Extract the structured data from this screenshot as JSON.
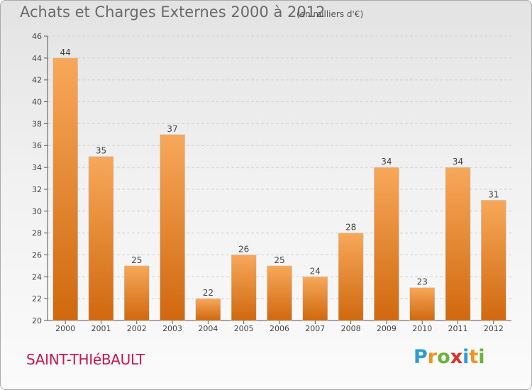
{
  "header": {
    "title": "Achats et Charges Externes 2000 à 2012",
    "subtitle": "(en milliers d'€)"
  },
  "footer": {
    "city": "SAINT-THIéBAULT"
  },
  "brand": {
    "logo_letters": [
      "P",
      "r",
      "o",
      "x",
      "i",
      "t",
      "i"
    ],
    "logo_colors": [
      "#2e9bd6",
      "#f29222",
      "#6bb33a",
      "#d9302c",
      "#2e9bd6",
      "#f29222",
      "#6bb33a"
    ]
  },
  "chart_data": {
    "type": "bar",
    "categories": [
      "2000",
      "2001",
      "2002",
      "2003",
      "2004",
      "2005",
      "2006",
      "2007",
      "2008",
      "2009",
      "2010",
      "2011",
      "2012"
    ],
    "values": [
      44,
      35,
      25,
      37,
      22,
      26,
      25,
      24,
      28,
      34,
      23,
      34,
      31
    ],
    "ylim": [
      20,
      46
    ],
    "yticks": [
      20,
      22,
      24,
      26,
      28,
      30,
      32,
      34,
      36,
      38,
      40,
      42,
      44,
      46
    ],
    "grid": true,
    "bar_color_top": "#f7a85a",
    "bar_color_bottom": "#d0680e"
  }
}
